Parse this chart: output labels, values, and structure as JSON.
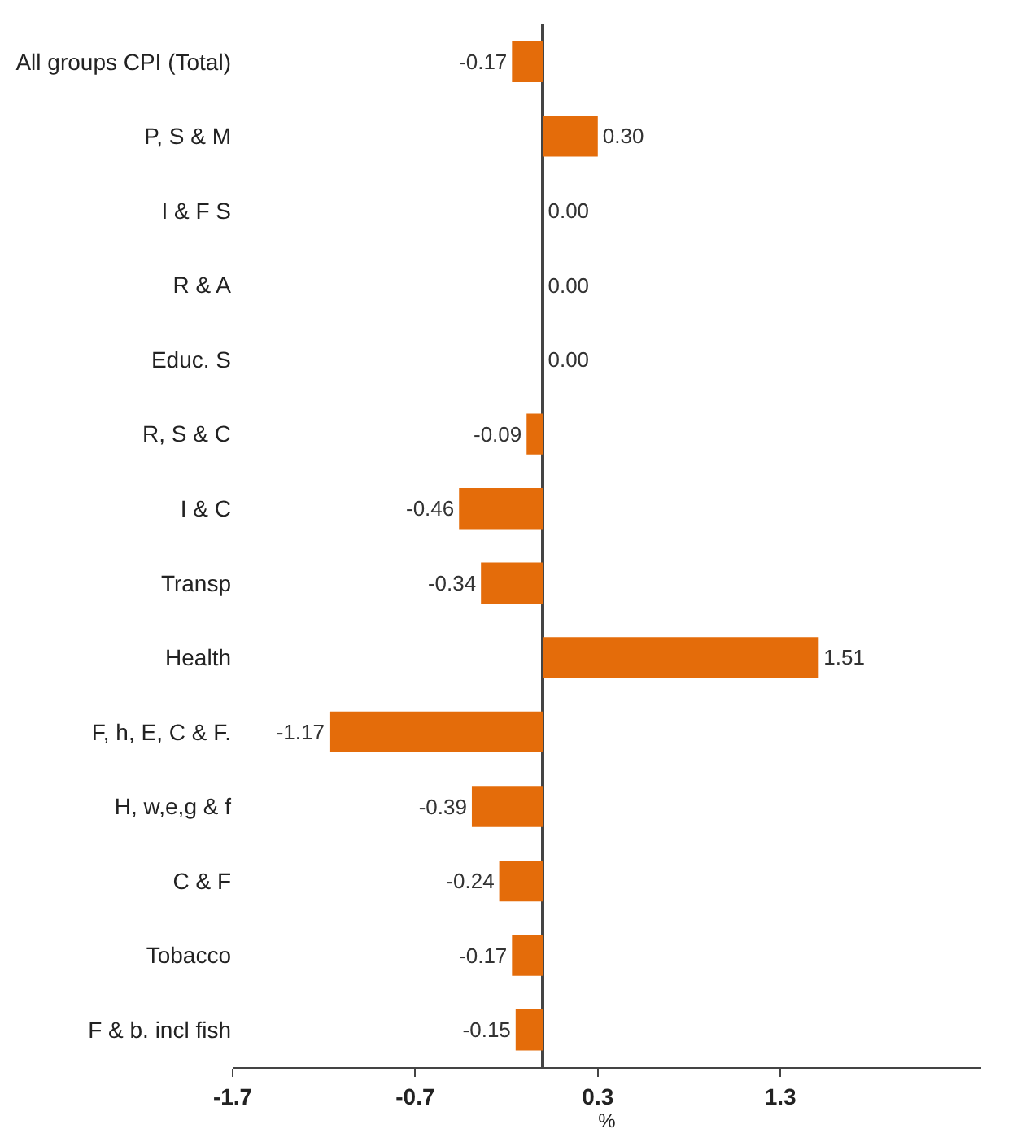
{
  "chart_data": {
    "type": "bar",
    "orientation": "horizontal",
    "xlabel": "%",
    "categories": [
      "All groups CPI (Total)",
      "P, S & M",
      "I & F S",
      "R & A",
      "Educ. S",
      "R, S & C",
      "I & C",
      "Transp",
      "Health",
      "F, h, E, C & F.",
      "H, w,e,g & f",
      "C & F",
      "Tobacco",
      "F & b. incl fish"
    ],
    "values": [
      -0.17,
      0.3,
      0.0,
      0.0,
      0.0,
      -0.09,
      -0.46,
      -0.34,
      1.51,
      -1.17,
      -0.39,
      -0.24,
      -0.17,
      -0.15
    ],
    "value_labels": [
      "-0.17",
      "0.30",
      "0.00",
      "0.00",
      "0.00",
      "-0.09",
      "-0.46",
      "-0.34",
      "1.51",
      "-1.17",
      "-0.39",
      "-0.24",
      "-0.17",
      "-0.15"
    ],
    "color": "#e46c0a",
    "xlim": [
      -1.7,
      2.4
    ],
    "xticks": [
      -1.7,
      -0.7,
      0.3,
      1.3
    ],
    "legend": false
  }
}
